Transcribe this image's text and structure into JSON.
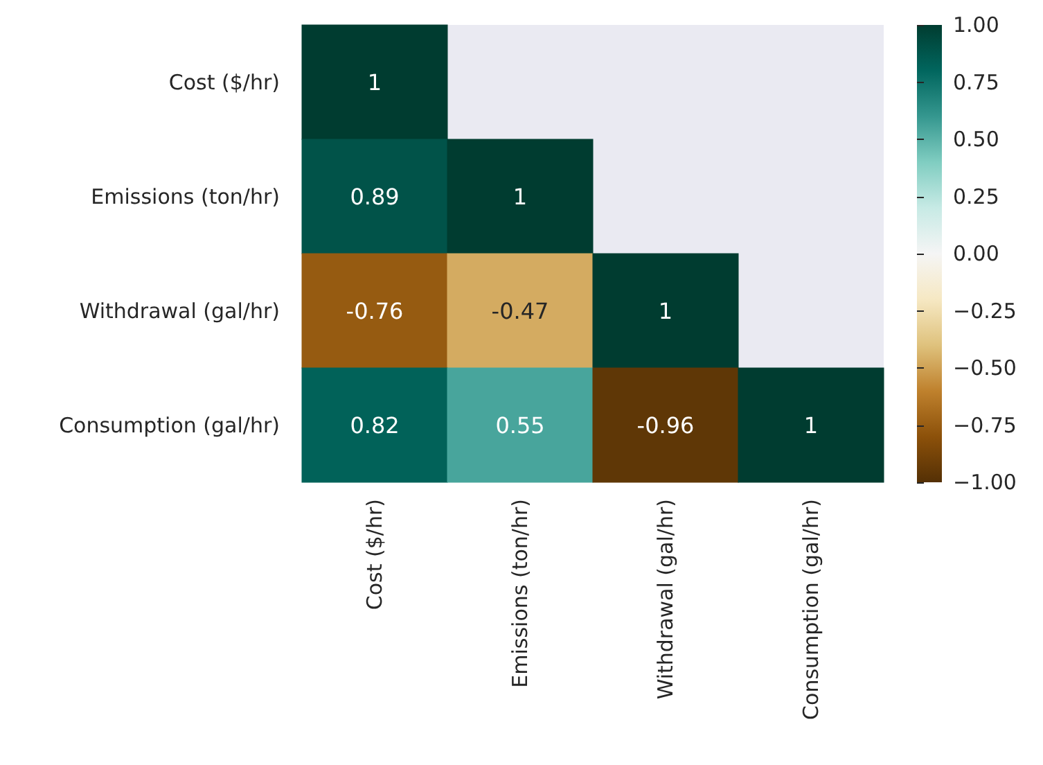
{
  "chart_data": {
    "type": "heatmap",
    "categories": [
      "Cost ($/hr)",
      "Emissions (ton/hr)",
      "Withdrawal (gal/hr)",
      "Consumption (gal/hr)"
    ],
    "y_categories": [
      "Cost ($/hr)",
      "Emissions (ton/hr)",
      "Withdrawal (gal/hr)",
      "Consumption (gal/hr)"
    ],
    "cells": [
      [
        1,
        null,
        null,
        null
      ],
      [
        0.89,
        1,
        null,
        null
      ],
      [
        -0.76,
        -0.47,
        1,
        null
      ],
      [
        0.82,
        0.55,
        -0.96,
        1
      ]
    ],
    "data_labels": true,
    "clim": [
      -1,
      1
    ],
    "cticks": [
      {
        "value": -1,
        "label": "−1.00"
      },
      {
        "value": -0.75,
        "label": "−0.75"
      },
      {
        "value": -0.5,
        "label": "−0.50"
      },
      {
        "value": -0.25,
        "label": "−0.25"
      },
      {
        "value": 0,
        "label": "0.00"
      },
      {
        "value": 0.25,
        "label": "0.25"
      },
      {
        "value": 0.5,
        "label": "0.50"
      },
      {
        "value": 0.75,
        "label": "0.75"
      },
      {
        "value": 1,
        "label": "1.00"
      }
    ]
  }
}
